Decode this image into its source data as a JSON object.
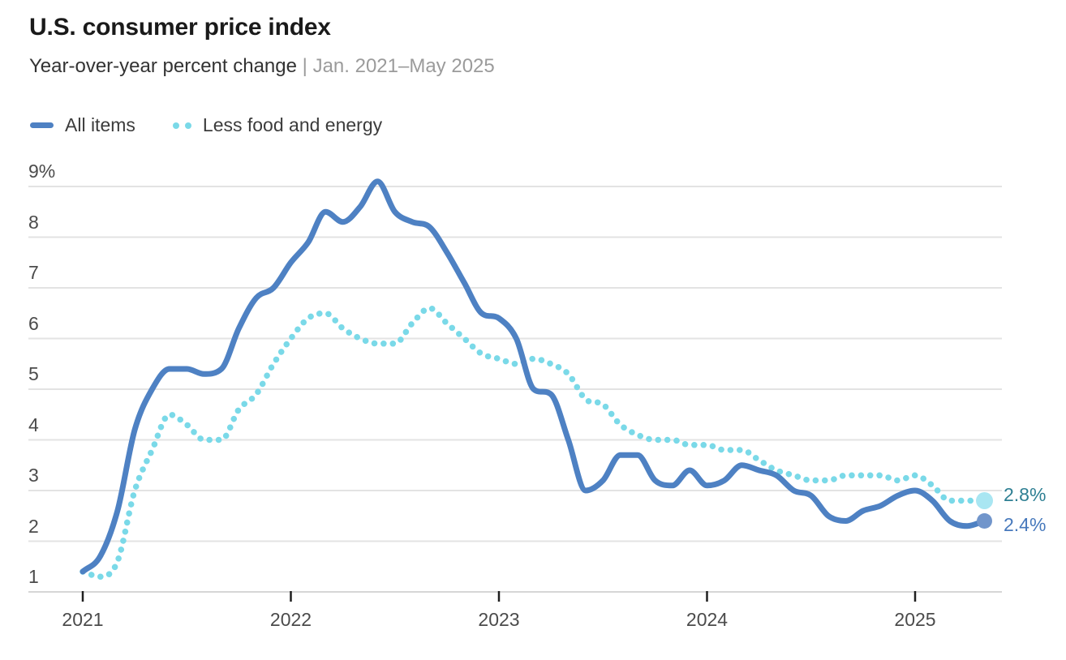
{
  "header": {
    "title": "U.S. consumer price index",
    "subtitle": "Year-over-year percent change",
    "separator": "|",
    "date_range": "Jan. 2021–May 2025"
  },
  "chart_data": {
    "type": "line",
    "title": "U.S. consumer price index",
    "subtitle": "Year-over-year percent change",
    "date_range": "Jan. 2021–May 2025",
    "x_unit": "month",
    "x_start": "2021-01",
    "x_end": "2025-05",
    "x_tick_labels": [
      "2021",
      "2022",
      "2023",
      "2024",
      "2025"
    ],
    "ylabel": "percent",
    "ylim": [
      1,
      9
    ],
    "y_tick_labels": [
      "1",
      "2",
      "3",
      "4",
      "5",
      "6",
      "7",
      "8",
      "9%"
    ],
    "grid": "horizontal",
    "legend_position": "top-left",
    "colors": {
      "gridline": "#e3e3e3",
      "axis_line": "#d6d6d6",
      "tick": "#1f1f1f",
      "axis_text": "#4b4b4b"
    },
    "series": [
      {
        "name": "All items",
        "style": "solid",
        "color": "#4e81c3",
        "end_dot_color": "#7195cb",
        "end_label": "2.4%",
        "end_label_color": "#4779bc",
        "values": [
          1.4,
          1.7,
          2.6,
          4.2,
          5.0,
          5.4,
          5.4,
          5.3,
          5.4,
          6.2,
          6.8,
          7.0,
          7.5,
          7.9,
          8.5,
          8.3,
          8.6,
          9.1,
          8.5,
          8.3,
          8.2,
          7.7,
          7.1,
          6.5,
          6.4,
          6.0,
          5.0,
          4.9,
          4.0,
          3.0,
          3.2,
          3.7,
          3.7,
          3.2,
          3.1,
          3.4,
          3.1,
          3.2,
          3.5,
          3.4,
          3.3,
          3.0,
          2.9,
          2.5,
          2.4,
          2.6,
          2.7,
          2.9,
          3.0,
          2.8,
          2.4,
          2.3,
          2.4
        ]
      },
      {
        "name": "Less food and energy",
        "style": "dotted",
        "color": "#7ad9e8",
        "end_dot_color": "#a9e6f2",
        "end_label": "2.8%",
        "end_label_color": "#2e7f93",
        "values": [
          1.4,
          1.3,
          1.6,
          3.0,
          3.8,
          4.5,
          4.3,
          4.0,
          4.0,
          4.6,
          4.9,
          5.5,
          6.0,
          6.4,
          6.5,
          6.2,
          6.0,
          5.9,
          5.9,
          6.3,
          6.6,
          6.3,
          6.0,
          5.7,
          5.6,
          5.5,
          5.6,
          5.5,
          5.3,
          4.8,
          4.7,
          4.3,
          4.1,
          4.0,
          4.0,
          3.9,
          3.9,
          3.8,
          3.8,
          3.6,
          3.4,
          3.3,
          3.2,
          3.2,
          3.3,
          3.3,
          3.3,
          3.2,
          3.3,
          3.1,
          2.8,
          2.8,
          2.8
        ]
      }
    ]
  }
}
